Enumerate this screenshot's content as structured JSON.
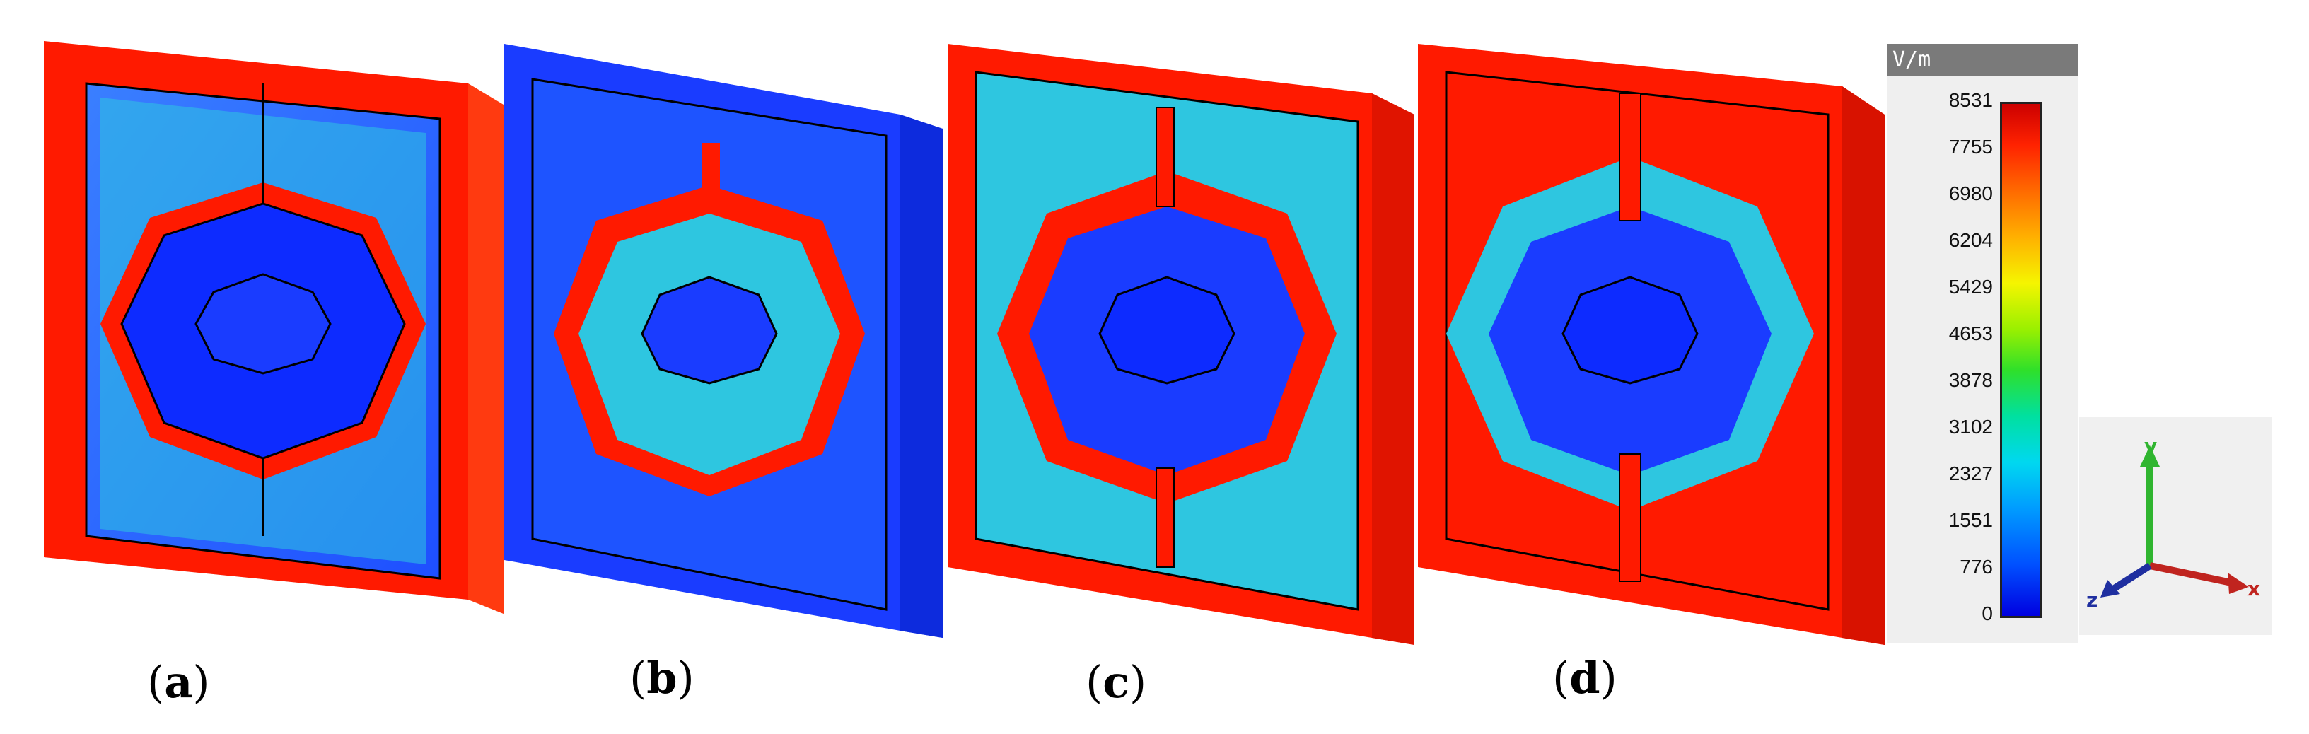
{
  "panels": [
    {
      "id": "a",
      "caption": "a"
    },
    {
      "id": "b",
      "caption": "b"
    },
    {
      "id": "c",
      "caption": "c"
    },
    {
      "id": "d",
      "caption": "d"
    }
  ],
  "legend": {
    "unit": "V/m",
    "ticks": [
      "8531",
      "7755",
      "6980",
      "6204",
      "5429",
      "4653",
      "3878",
      "3102",
      "2327",
      "1551",
      "776",
      "0"
    ]
  },
  "axes": {
    "x_label": "x",
    "y_label": "y",
    "z_label": "z"
  },
  "colors": {
    "high": "#ff1a00",
    "mid": "#00e0a0",
    "low": "#1a2dff",
    "frame_bg": "#f0f0f0"
  }
}
